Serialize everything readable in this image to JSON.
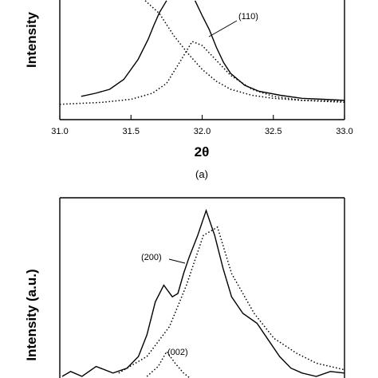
{
  "chart_data": [
    {
      "id": "a",
      "type": "line",
      "caption": "(a)",
      "xlabel": "2θ",
      "ylabel": "Intensity",
      "xlim": [
        31.0,
        33.0
      ],
      "x_ticks": [
        "31.0",
        "31.5",
        "32.0",
        "32.5",
        "33.0"
      ],
      "annotations": [
        {
          "text": "(110)",
          "x": 32.15
        }
      ],
      "series": [
        {
          "style": "solid",
          "x": [
            31.15,
            31.25,
            31.35,
            31.45,
            31.55,
            31.62,
            31.66,
            31.7,
            31.75
          ],
          "y": [
            0.09,
            0.12,
            0.16,
            0.26,
            0.46,
            0.66,
            0.8,
            0.93,
            1.05
          ]
        },
        {
          "style": "solid",
          "x": [
            31.95,
            32.0,
            32.05,
            32.1,
            32.15,
            32.2,
            32.3,
            32.4,
            32.55,
            32.7,
            32.85,
            33.0
          ],
          "y": [
            1.05,
            0.9,
            0.76,
            0.58,
            0.43,
            0.32,
            0.2,
            0.14,
            0.1,
            0.07,
            0.06,
            0.05
          ]
        },
        {
          "style": "dotted",
          "x": [
            31.6,
            31.7,
            31.8,
            31.9,
            32.0,
            32.1,
            32.2,
            32.35,
            32.5,
            32.7,
            33.0
          ],
          "y": [
            1.05,
            0.92,
            0.7,
            0.52,
            0.36,
            0.24,
            0.16,
            0.1,
            0.07,
            0.05,
            0.04
          ]
        },
        {
          "style": "dotted",
          "x": [
            31.0,
            31.3,
            31.5,
            31.65,
            31.75,
            31.85,
            31.93,
            32.0,
            32.1,
            32.2,
            32.35,
            32.5,
            32.7,
            33.0
          ],
          "y": [
            0.01,
            0.03,
            0.06,
            0.12,
            0.22,
            0.45,
            0.64,
            0.6,
            0.45,
            0.3,
            0.16,
            0.09,
            0.05,
            0.03
          ]
        }
      ]
    },
    {
      "id": "b",
      "type": "line",
      "ylabel": "Intensity (a.u.)",
      "annotations": [
        {
          "text": "(200)"
        },
        {
          "text": "(002)"
        }
      ],
      "series": [
        {
          "style": "solid",
          "x": [
            0.0,
            0.03,
            0.07,
            0.12,
            0.18,
            0.23,
            0.27,
            0.3,
            0.33,
            0.36,
            0.39,
            0.41,
            0.43,
            0.45,
            0.48,
            0.51,
            0.54,
            0.57,
            0.6,
            0.64,
            0.69,
            0.73,
            0.77,
            0.81,
            0.85,
            0.9,
            0.95,
            1.0
          ],
          "y": [
            0.0,
            0.03,
            0.0,
            0.06,
            0.02,
            0.05,
            0.12,
            0.25,
            0.45,
            0.55,
            0.48,
            0.5,
            0.62,
            0.72,
            0.85,
            1.0,
            0.85,
            0.65,
            0.48,
            0.38,
            0.32,
            0.22,
            0.12,
            0.05,
            0.02,
            0.0,
            0.03,
            0.02
          ]
        },
        {
          "style": "dotted",
          "x": [
            0.2,
            0.3,
            0.38,
            0.44,
            0.5,
            0.55,
            0.6,
            0.68,
            0.75,
            0.83,
            0.9,
            1.0
          ],
          "y": [
            0.02,
            0.12,
            0.3,
            0.55,
            0.85,
            0.9,
            0.62,
            0.38,
            0.23,
            0.14,
            0.08,
            0.04
          ]
        },
        {
          "style": "dotted",
          "x": [
            0.3,
            0.34,
            0.37,
            0.4,
            0.43,
            0.46
          ],
          "y": [
            0.0,
            0.06,
            0.15,
            0.08,
            0.02,
            -0.02
          ]
        }
      ]
    }
  ]
}
